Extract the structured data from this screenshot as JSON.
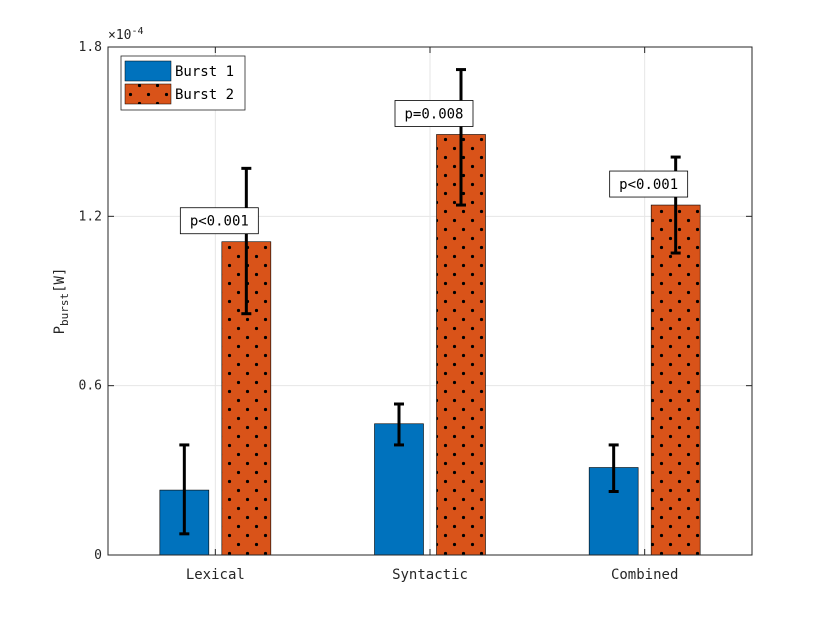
{
  "chart_data": {
    "type": "bar",
    "title": "",
    "xlabel": "",
    "ylabel": {
      "main": "P",
      "subscript": "burst",
      "unit": "[W]"
    },
    "y_exponent": {
      "base": "×10",
      "power": "-4"
    },
    "ylim": [
      0,
      1.8
    ],
    "yticks": [
      0,
      0.6,
      1.2,
      1.8
    ],
    "ytick_labels": [
      "0",
      "0.6",
      "1.2",
      "1.8"
    ],
    "grid": true,
    "categories": [
      "Lexical",
      "Syntactic",
      "Combined"
    ],
    "series": [
      {
        "name": "Burst 1",
        "color": "#0072BD",
        "pattern": "solid",
        "values": [
          0.23,
          0.465,
          0.31
        ],
        "error_low": [
          0.075,
          0.39,
          0.225
        ],
        "error_high": [
          0.39,
          0.535,
          0.39
        ]
      },
      {
        "name": "Burst 2",
        "color": "#D95319",
        "pattern": "dots",
        "values": [
          1.11,
          1.49,
          1.24
        ],
        "error_low": [
          0.855,
          1.24,
          1.07
        ],
        "error_high": [
          1.37,
          1.72,
          1.41
        ]
      }
    ],
    "annotations": [
      "p<0.001",
      "p=0.008",
      "p<0.001"
    ],
    "legend": {
      "position": "top-left",
      "entries": [
        "Burst 1",
        "Burst 2"
      ]
    }
  }
}
